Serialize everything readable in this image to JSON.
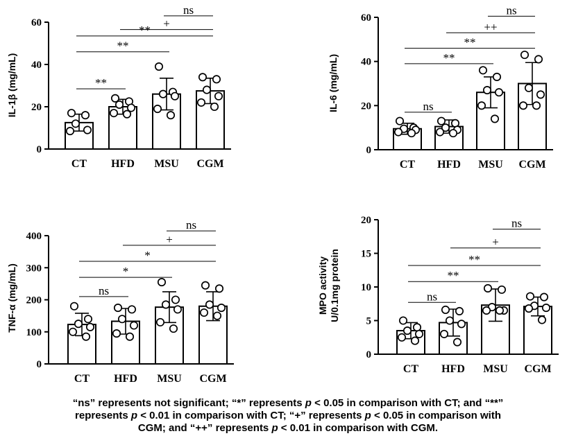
{
  "chart_data": [
    {
      "type": "bar",
      "title": "",
      "ylabel": "IL-1β  (mg/mL)",
      "xlabel": "",
      "ylim": [
        0,
        60
      ],
      "yticks": [
        0,
        20,
        40,
        60
      ],
      "categories": [
        "CT",
        "HFD",
        "MSU",
        "CGM"
      ],
      "values": [
        12.5,
        20,
        26,
        27.5
      ],
      "errors": [
        4,
        3.5,
        7.5,
        6
      ],
      "points": [
        [
          17,
          16,
          12,
          9,
          8.5
        ],
        [
          24,
          22.5,
          21,
          19.5,
          17,
          16.5
        ],
        [
          39,
          27,
          26,
          25,
          19,
          16
        ],
        [
          34,
          33,
          28,
          25,
          22,
          20
        ]
      ],
      "brackets": [
        {
          "from": 0,
          "to": 1,
          "y": 28.5,
          "label": "**"
        },
        {
          "from": 0,
          "to": 2,
          "y": 46,
          "label": "**"
        },
        {
          "from": 0,
          "to": 3,
          "y": 53.5,
          "label": "**"
        },
        {
          "from": 1,
          "to": 3,
          "y": 56.5,
          "label": "+"
        },
        {
          "from": 2,
          "to": 3,
          "y": 63,
          "label": "ns"
        }
      ]
    },
    {
      "type": "bar",
      "title": "",
      "ylabel": "IL-6  (mg/mL)",
      "xlabel": "",
      "ylim": [
        0,
        60
      ],
      "yticks": [
        0,
        20,
        40,
        60
      ],
      "categories": [
        "CT",
        "HFD",
        "MSU",
        "CGM"
      ],
      "values": [
        9.5,
        10.5,
        26,
        30
      ],
      "errors": [
        2.5,
        3,
        7,
        9.5
      ],
      "points": [
        [
          13,
          10,
          9.5,
          9,
          8,
          7.5
        ],
        [
          13,
          12,
          10,
          9,
          8,
          7.5
        ],
        [
          36,
          33,
          27,
          26,
          20,
          14
        ],
        [
          43,
          41,
          28,
          25,
          20,
          20
        ]
      ],
      "brackets": [
        {
          "from": 0,
          "to": 1,
          "y": 17,
          "label": "ns"
        },
        {
          "from": 0,
          "to": 2,
          "y": 39,
          "label": "**"
        },
        {
          "from": 0,
          "to": 3,
          "y": 46,
          "label": "**"
        },
        {
          "from": 1,
          "to": 3,
          "y": 53,
          "label": "++"
        },
        {
          "from": 2,
          "to": 3,
          "y": 60.5,
          "label": "ns"
        }
      ]
    },
    {
      "type": "bar",
      "title": "",
      "ylabel": "TNF-α  (mg/mL)",
      "xlabel": "",
      "ylim": [
        0,
        400
      ],
      "yticks": [
        0,
        100,
        200,
        300,
        400
      ],
      "categories": [
        "CT",
        "HFD",
        "MSU",
        "CGM"
      ],
      "values": [
        123,
        133,
        177,
        180
      ],
      "errors": [
        35,
        40,
        48,
        45
      ],
      "points": [
        [
          180,
          140,
          125,
          115,
          100,
          85
        ],
        [
          175,
          170,
          140,
          120,
          95,
          85
        ],
        [
          255,
          200,
          185,
          170,
          130,
          110
        ],
        [
          245,
          235,
          185,
          175,
          160,
          150
        ]
      ],
      "brackets": [
        {
          "from": 0,
          "to": 1,
          "y": 210,
          "label": "ns"
        },
        {
          "from": 0,
          "to": 2,
          "y": 270,
          "label": "*"
        },
        {
          "from": 0,
          "to": 3,
          "y": 320,
          "label": "*"
        },
        {
          "from": 1,
          "to": 3,
          "y": 370,
          "label": "+"
        },
        {
          "from": 2,
          "to": 3,
          "y": 415,
          "label": "ns"
        }
      ]
    },
    {
      "type": "bar",
      "title": "",
      "ylabel": "MPO activity\nU/0.1mg protein",
      "xlabel": "",
      "ylim": [
        0,
        20
      ],
      "yticks": [
        0,
        5,
        10,
        15,
        20
      ],
      "categories": [
        "CT",
        "HFD",
        "MSU",
        "CGM"
      ],
      "values": [
        3.5,
        4.7,
        7.3,
        7.1
      ],
      "errors": [
        1.2,
        2,
        2.4,
        1.4
      ],
      "points": [
        [
          5,
          4,
          3.5,
          3,
          2.5,
          2
        ],
        [
          6.6,
          6.4,
          5,
          4.5,
          3,
          1.8
        ],
        [
          9.8,
          9.6,
          7,
          6.5,
          6.5,
          6.5
        ],
        [
          8.6,
          8.5,
          7.2,
          6.9,
          6.8,
          5.1
        ]
      ],
      "brackets": [
        {
          "from": 0,
          "to": 1,
          "y": 7.7,
          "label": "ns"
        },
        {
          "from": 0,
          "to": 2,
          "y": 10.8,
          "label": "**"
        },
        {
          "from": 0,
          "to": 3,
          "y": 13.2,
          "label": "**"
        },
        {
          "from": 1,
          "to": 3,
          "y": 15.8,
          "label": "+"
        },
        {
          "from": 2,
          "to": 3,
          "y": 18.6,
          "label": "ns"
        }
      ]
    }
  ],
  "caption": {
    "l1a": "“ns” represents not significant; “*” represents ",
    "p1": "p",
    "l1b": " < 0.05 in comparison with CT; and “**”",
    "l2a": "represents ",
    "p2": "p",
    "l2b": " < 0.01 in comparison with CT; “+” represents ",
    "p3": "p",
    "l2c": " < 0.05 in comparison with",
    "l3a": "CGM; and “++” represents ",
    "p4": "p",
    "l3b": " < 0.01 in comparison with CGM."
  }
}
